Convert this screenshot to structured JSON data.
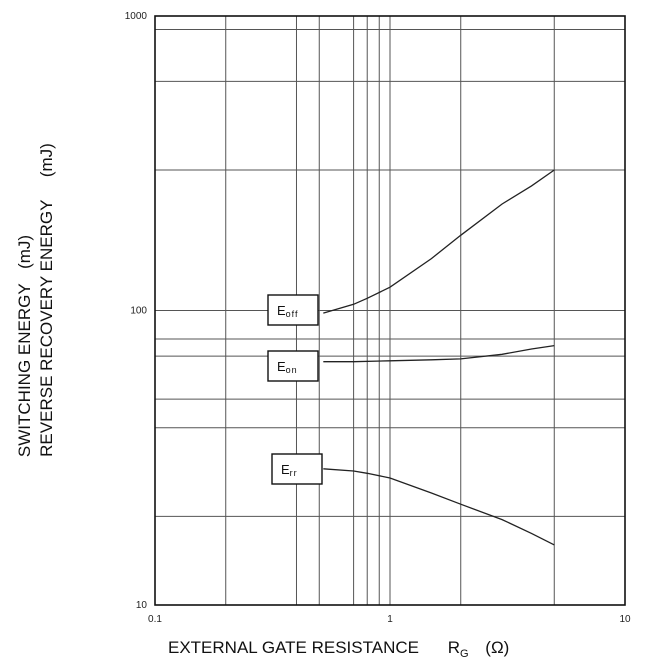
{
  "chart_data": {
    "type": "line",
    "title": "",
    "xlabel": {
      "main": "EXTERNAL GATE RESISTANCE",
      "symbol": "R",
      "subscript": "G",
      "unit": "(Ω)"
    },
    "ylabel": [
      {
        "text": "SWITCHING ENERGY",
        "unit": "(mJ)"
      },
      {
        "text": "REVERSE RECOVERY ENERGY",
        "unit": "(mJ)"
      }
    ],
    "xscale": "log",
    "yscale": "log",
    "xlim": [
      0.1,
      10
    ],
    "ylim": [
      10,
      1000
    ],
    "x_ticks": [
      {
        "value": 0.1,
        "label": "0.1"
      },
      {
        "value": 1,
        "label": "1"
      },
      {
        "value": 10,
        "label": "10"
      }
    ],
    "y_ticks": [
      {
        "value": 10,
        "label": "10"
      },
      {
        "value": 100,
        "label": "100"
      },
      {
        "value": 1000,
        "label": "1000"
      }
    ],
    "x_grid": [
      0.2,
      0.4,
      0.5,
      0.7,
      0.8,
      0.9,
      1,
      2,
      5
    ],
    "y_grid": [
      20,
      40,
      50,
      70,
      80,
      100,
      300,
      600,
      900
    ],
    "grid": true,
    "series": [
      {
        "name": "Eoff",
        "label_main": "E",
        "label_sub": "off",
        "x": [
          0.52,
          0.7,
          0.8,
          1.0,
          1.5,
          2.0,
          3.0,
          4.0,
          5.0
        ],
        "y": [
          98,
          105,
          110,
          120,
          150,
          180,
          230,
          265,
          300
        ]
      },
      {
        "name": "Eon",
        "label_main": "E",
        "label_sub": "on",
        "x": [
          0.52,
          0.7,
          1.0,
          1.5,
          2.0,
          3.0,
          4.0,
          5.0
        ],
        "y": [
          67,
          67,
          67.5,
          68,
          68.5,
          71,
          74,
          76
        ]
      },
      {
        "name": "Err",
        "label_main": "E",
        "label_sub": "rr",
        "x": [
          0.52,
          0.7,
          0.8,
          1.0,
          1.5,
          2.0,
          3.0,
          4.0,
          5.0
        ],
        "y": [
          29,
          28.5,
          28,
          27,
          24,
          22,
          19.5,
          17.5,
          16
        ]
      }
    ]
  }
}
